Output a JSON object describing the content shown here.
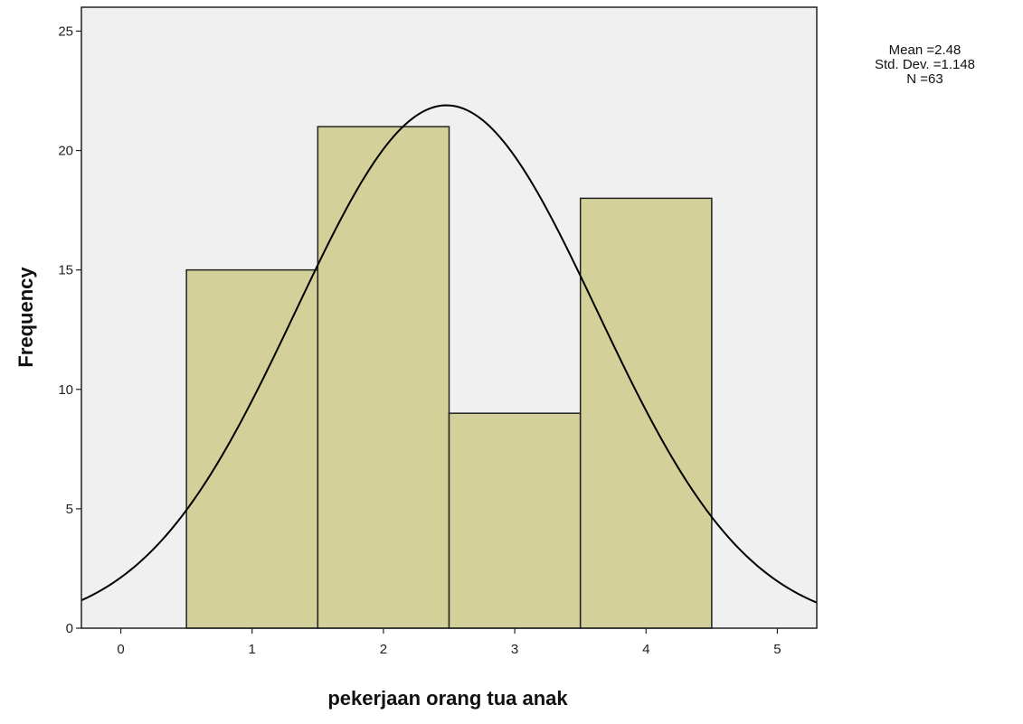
{
  "chart_data": {
    "type": "bar",
    "subtype": "histogram",
    "bins": [
      {
        "x0": 0.5,
        "x1": 1.5,
        "value": 15
      },
      {
        "x0": 1.5,
        "x1": 2.5,
        "value": 21
      },
      {
        "x0": 2.5,
        "x1": 3.5,
        "value": 9
      },
      {
        "x0": 3.5,
        "x1": 4.5,
        "value": 18
      }
    ],
    "xlabel": "pekerjaan orang tua anak",
    "ylabel": "Frequency",
    "xlim": [
      -0.3,
      5.3
    ],
    "ylim": [
      0,
      26
    ],
    "xticks": [
      0,
      1,
      2,
      3,
      4,
      5
    ],
    "yticks": [
      0,
      5,
      10,
      15,
      20,
      25
    ],
    "normal_curve": {
      "mean": 2.48,
      "sd": 1.148,
      "n": 63,
      "bin_width": 1
    },
    "colors": {
      "bar_fill": "#d4d09a",
      "plot_background": "#f0f0f0",
      "line": "#000000"
    },
    "grid": false,
    "stats_box": {
      "position": "top-right",
      "mean": "Mean =2.48",
      "std_dev": "Std. Dev. =1.148",
      "n": "N =63"
    }
  }
}
